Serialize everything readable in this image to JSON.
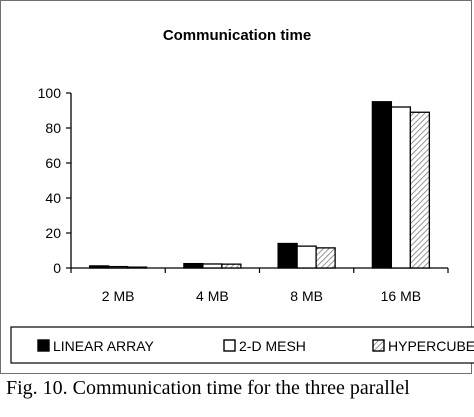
{
  "chart_data": {
    "type": "bar",
    "title": "Communication time",
    "categories": [
      "2 MB",
      "4 MB",
      "8 MB",
      "16 MB"
    ],
    "series": [
      {
        "name": "LINEAR ARRAY",
        "values": [
          1.2,
          2.5,
          14,
          95
        ],
        "fill": "#000000",
        "pattern": "solid"
      },
      {
        "name": "2-D MESH",
        "values": [
          0.8,
          2.3,
          12.5,
          92
        ],
        "fill": "#ffffff",
        "pattern": "none"
      },
      {
        "name": "HYPERCUBE",
        "values": [
          0.5,
          2.2,
          11.5,
          89
        ],
        "fill": "#ffffff",
        "pattern": "diagonal-hatch"
      }
    ],
    "ylim": [
      0,
      100
    ],
    "yticks": [
      0,
      20,
      40,
      60,
      80,
      100
    ],
    "grid": false,
    "legend_position": "bottom",
    "xlabel": "",
    "ylabel": ""
  },
  "caption": {
    "line1": "Fig. 10. Communication time for the three parallel",
    "line2": ""
  }
}
